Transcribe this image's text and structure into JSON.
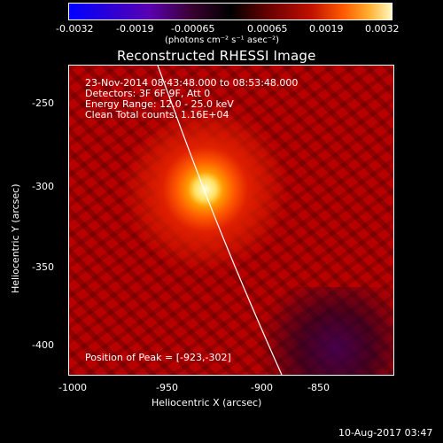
{
  "colorbar": {
    "ticks": [
      "-0.0032",
      "-0.0019",
      "-0.00065",
      "0.00065",
      "0.0019",
      "0.0032"
    ],
    "units": "(photons cm⁻² s⁻¹ asec⁻²)"
  },
  "title": "Reconstructed RHESSI Image",
  "annotations": {
    "line1": "23-Nov-2014 08:43:48.000 to 08:53:48.000",
    "line2": "Detectors: 3F 6F 9F, Att 0",
    "line3": "Energy Range: 12.0 - 25.0 keV",
    "line4": "Clean     Total counts: 1.16E+04",
    "peak": "Position of Peak = [-923,-302]"
  },
  "axes": {
    "x_label": "Heliocentric X (arcsec)",
    "y_label": "Heliocentric Y (arcsec)",
    "x_ticks": [
      "-1000",
      "-950",
      "-900",
      "-850"
    ],
    "y_ticks": [
      "-250",
      "-300",
      "-350",
      "-400"
    ]
  },
  "footer_timestamp": "10-Aug-2017 03:47"
}
